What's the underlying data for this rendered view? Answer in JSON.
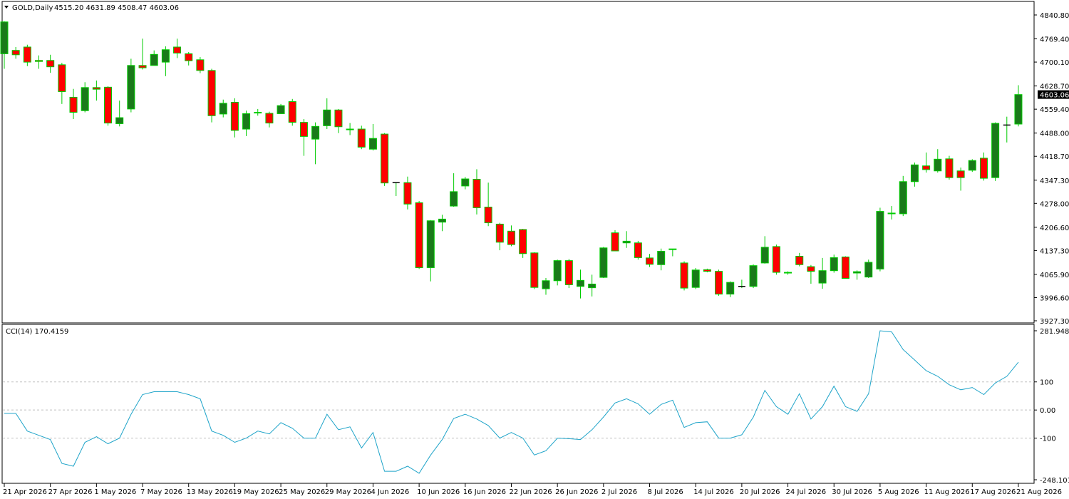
{
  "header": {
    "symbol_label": "GOLD,Daily",
    "ohlc": "4515.20 4631.89 4508.47 4603.06",
    "menu_icon": "triangle-down-icon"
  },
  "colors": {
    "bull_body": "#1a7a1a",
    "bear_body": "#ff0000",
    "wick": "#00cc00",
    "doji": "#000000",
    "cci_line": "#1fa4c9",
    "price_tag_bg": "#000000"
  },
  "chart_data": [
    {
      "type": "candlestick",
      "title": "GOLD,Daily",
      "y_ticks": [
        "4840.80",
        "4769.40",
        "4700.10",
        "4628.70",
        "4559.40",
        "4488.00",
        "4418.70",
        "4347.30",
        "4278.00",
        "4206.60",
        "4137.30",
        "4065.90",
        "3996.60",
        "3927.30"
      ],
      "ylim": [
        3927.3,
        4840.8
      ],
      "last_price_label": "4603.06",
      "x_labels": [
        "21 Apr 2026",
        "27 Apr 2026",
        "1 May 2026",
        "7 May 2026",
        "13 May 2026",
        "19 May 2026",
        "25 May 2026",
        "29 May 2026",
        "4 Jun 2026",
        "10 Jun 2026",
        "16 Jun 2026",
        "22 Jun 2026",
        "26 Jun 2026",
        "2 Jul 2026",
        "8 Jul 2026",
        "14 Jul 2026",
        "20 Jul 2026",
        "24 Jul 2026",
        "30 Jul 2026",
        "5 Aug 2026",
        "11 Aug 2026",
        "17 Aug 2026",
        "21 Aug 2026"
      ],
      "label_every": 4,
      "candles": [
        [
          4725,
          4820,
          4680,
          4822
        ],
        [
          4735,
          4722,
          4710,
          4745
        ],
        [
          4745,
          4700,
          4688,
          4752
        ],
        [
          4705,
          4702,
          4680,
          4720
        ],
        [
          4705,
          4686,
          4668,
          4722
        ],
        [
          4692,
          4612,
          4575,
          4698
        ],
        [
          4595,
          4550,
          4530,
          4620
        ],
        [
          4555,
          4624,
          4550,
          4640
        ],
        [
          4624,
          4619,
          4585,
          4645
        ],
        [
          4625,
          4518,
          4510,
          4628
        ],
        [
          4516,
          4534,
          4508,
          4585
        ],
        [
          4560,
          4690,
          4550,
          4710
        ],
        [
          4690,
          4683,
          4678,
          4770
        ],
        [
          4690,
          4723,
          4690,
          4735
        ],
        [
          4700,
          4737,
          4658,
          4747
        ],
        [
          4745,
          4727,
          4712,
          4770
        ],
        [
          4725,
          4704,
          4690,
          4730
        ],
        [
          4707,
          4675,
          4667,
          4715
        ],
        [
          4675,
          4540,
          4520,
          4680
        ],
        [
          4545,
          4577,
          4535,
          4588
        ],
        [
          4580,
          4496,
          4475,
          4592
        ],
        [
          4500,
          4546,
          4479,
          4555
        ],
        [
          4550,
          4549,
          4540,
          4560
        ],
        [
          4547,
          4518,
          4505,
          4552
        ],
        [
          4546,
          4570,
          4545,
          4575
        ],
        [
          4582,
          4520,
          4510,
          4590
        ],
        [
          4520,
          4478,
          4420,
          4530
        ],
        [
          4470,
          4508,
          4395,
          4520
        ],
        [
          4510,
          4557,
          4500,
          4592
        ],
        [
          4557,
          4507,
          4488,
          4560
        ],
        [
          4500,
          4499,
          4482,
          4518
        ],
        [
          4500,
          4446,
          4440,
          4510
        ],
        [
          4440,
          4472,
          4436,
          4515
        ],
        [
          4485,
          4339,
          4330,
          4488
        ],
        [
          4340,
          4340,
          4300,
          4340
        ],
        [
          4340,
          4276,
          4260,
          4358
        ],
        [
          4280,
          4086,
          4082,
          4285
        ],
        [
          4086,
          4226,
          4045,
          4228
        ],
        [
          4222,
          4231,
          4195,
          4244
        ],
        [
          4270,
          4313,
          4268,
          4368
        ],
        [
          4330,
          4351,
          4320,
          4357
        ],
        [
          4350,
          4265,
          4245,
          4380
        ],
        [
          4267,
          4220,
          4210,
          4340
        ],
        [
          4216,
          4162,
          4138,
          4220
        ],
        [
          4195,
          4155,
          4150,
          4212
        ],
        [
          4200,
          4128,
          4115,
          4202
        ],
        [
          4130,
          4027,
          4022,
          4132
        ],
        [
          4023,
          4047,
          4005,
          4055
        ],
        [
          4047,
          4107,
          4033,
          4110
        ],
        [
          4107,
          4035,
          4025,
          4112
        ],
        [
          4030,
          4048,
          3994,
          4080
        ],
        [
          4026,
          4037,
          4000,
          4065
        ],
        [
          4057,
          4145,
          4055,
          4148
        ],
        [
          4190,
          4136,
          4136,
          4198
        ],
        [
          4160,
          4165,
          4145,
          4195
        ],
        [
          4160,
          4116,
          4110,
          4166
        ],
        [
          4115,
          4096,
          4088,
          4127
        ],
        [
          4095,
          4135,
          4078,
          4143
        ],
        [
          4142,
          4140,
          4120,
          4142
        ],
        [
          4100,
          4025,
          4018,
          4105
        ],
        [
          4027,
          4079,
          4022,
          4085
        ],
        [
          4080,
          4075,
          4072,
          4083
        ],
        [
          4075,
          4007,
          4002,
          4080
        ],
        [
          4007,
          4042,
          3998,
          4045
        ],
        [
          4030,
          4030,
          4025,
          4050
        ],
        [
          4030,
          4092,
          4025,
          4096
        ],
        [
          4100,
          4147,
          4098,
          4180
        ],
        [
          4149,
          4072,
          4065,
          4155
        ],
        [
          4072,
          4070,
          4065,
          4075
        ],
        [
          4120,
          4095,
          4090,
          4130
        ],
        [
          4089,
          4075,
          4038,
          4094
        ],
        [
          4040,
          4077,
          4023,
          4115
        ],
        [
          4077,
          4116,
          4071,
          4125
        ],
        [
          4118,
          4054,
          4054,
          4120
        ],
        [
          4070,
          4074,
          4050,
          4078
        ],
        [
          4058,
          4102,
          4055,
          4110
        ],
        [
          4082,
          4254,
          4075,
          4265
        ],
        [
          4249,
          4247,
          4230,
          4270
        ],
        [
          4247,
          4343,
          4240,
          4360
        ],
        [
          4343,
          4393,
          4328,
          4400
        ],
        [
          4390,
          4379,
          4370,
          4430
        ],
        [
          4375,
          4410,
          4370,
          4440
        ],
        [
          4411,
          4355,
          4349,
          4420
        ],
        [
          4375,
          4355,
          4316,
          4385
        ],
        [
          4377,
          4406,
          4372,
          4410
        ],
        [
          4413,
          4353,
          4346,
          4430
        ],
        [
          4355,
          4517,
          4345,
          4520
        ],
        [
          4512,
          4512,
          4460,
          4537
        ],
        [
          4515,
          4603,
          4508,
          4631
        ]
      ]
    },
    {
      "type": "line",
      "title": "CCI(14) 170.4159",
      "series_name": "CCI(14)",
      "y_ticks": [
        "281.9488",
        "100",
        "0.00",
        "-100",
        "-248.1017"
      ],
      "ylim": [
        -248.1017,
        281.9488
      ],
      "levels": [
        100,
        0,
        -100
      ],
      "values": [
        -12,
        -12,
        -75,
        -90,
        -105,
        -190,
        -200,
        -115,
        -95,
        -120,
        -100,
        -15,
        55,
        65,
        65,
        65,
        55,
        40,
        -75,
        -90,
        -115,
        -100,
        -75,
        -85,
        -45,
        -65,
        -100,
        -100,
        -15,
        -70,
        -60,
        -135,
        -80,
        -218,
        -218,
        -200,
        -225,
        -160,
        -105,
        -30,
        -15,
        -32,
        -55,
        -100,
        -80,
        -100,
        -160,
        -145,
        -100,
        -102,
        -105,
        -70,
        -25,
        25,
        40,
        22,
        -15,
        20,
        35,
        -62,
        -45,
        -42,
        -100,
        -100,
        -88,
        -25,
        70,
        12,
        -15,
        58,
        -32,
        12,
        85,
        12,
        -5,
        58,
        282,
        278,
        215,
        178,
        140,
        120,
        90,
        72,
        80,
        55,
        96,
        120,
        170
      ]
    }
  ]
}
